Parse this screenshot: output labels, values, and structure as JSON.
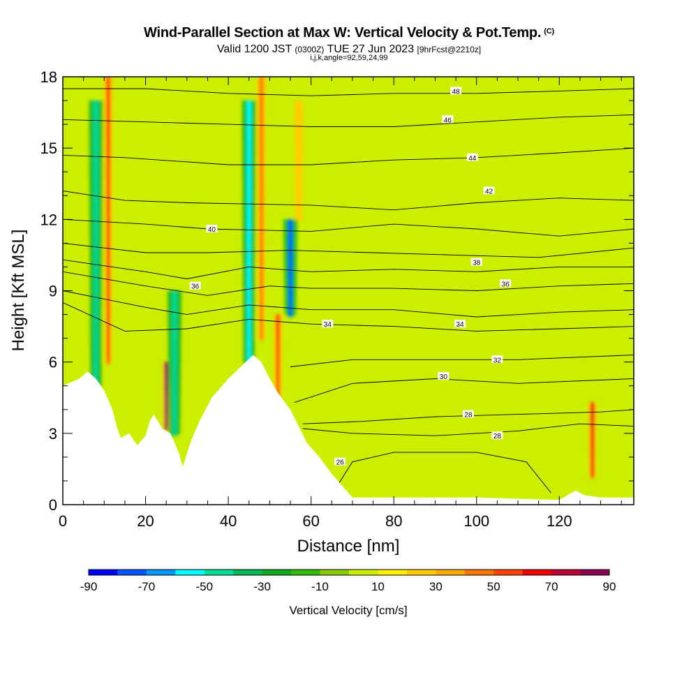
{
  "header": {
    "title": "Wind-Parallel Section at Max W: Vertical Velocity & Pot.Temp.",
    "title_mark": "(C)",
    "valid_main": "Valid 1200 JST",
    "valid_utc": "(0300Z)",
    "valid_date": "TUE 27 Jun 2023",
    "valid_fcst": "[9hrFcst@2210z]",
    "subtitle": "i,j,k,angle=92,59,24,99"
  },
  "chart_data": {
    "type": "heatmap",
    "xlabel": "Distance [nm]",
    "ylabel": "Height [Kft MSL]",
    "xlim": [
      0,
      138
    ],
    "ylim": [
      0,
      18
    ],
    "x_ticks": [
      0,
      20,
      40,
      60,
      80,
      100,
      120
    ],
    "y_ticks": [
      0,
      3,
      6,
      9,
      12,
      15,
      18
    ],
    "x_minor_step": 5,
    "y_minor_step": 1,
    "colorbar": {
      "label": "Vertical Velocity [cm/s]",
      "tick_labels": [
        -90,
        -70,
        -50,
        -30,
        -10,
        10,
        30,
        50,
        70,
        90
      ],
      "bounds": [
        -90,
        -80,
        -70,
        -60,
        -50,
        -40,
        -30,
        -20,
        -10,
        0,
        10,
        20,
        30,
        40,
        50,
        60,
        70,
        80,
        90
      ],
      "colors": [
        "#0000ff",
        "#0055ff",
        "#0099ff",
        "#00ffff",
        "#00dd99",
        "#00bb55",
        "#11aa22",
        "#33bb00",
        "#88cc00",
        "#ccee00",
        "#ffee00",
        "#ffcc00",
        "#ffaa00",
        "#ff7700",
        "#ff4400",
        "#ee0000",
        "#bb0033",
        "#880055"
      ]
    },
    "background_field": "#ccee00",
    "terrain_kft": [
      [
        0,
        5
      ],
      [
        4,
        5.3
      ],
      [
        6,
        5.6
      ],
      [
        8,
        5.3
      ],
      [
        10,
        4.8
      ],
      [
        12,
        4
      ],
      [
        13,
        3.3
      ],
      [
        14,
        2.8
      ],
      [
        16,
        3
      ],
      [
        18,
        2.5
      ],
      [
        20,
        2.9
      ],
      [
        21,
        3.5
      ],
      [
        22,
        3.8
      ],
      [
        24,
        3.2
      ],
      [
        26,
        3
      ],
      [
        28,
        2.2
      ],
      [
        29,
        1.6
      ],
      [
        31,
        2.7
      ],
      [
        33,
        3.5
      ],
      [
        36,
        4.5
      ],
      [
        40,
        5.3
      ],
      [
        43,
        5.8
      ],
      [
        46,
        6.3
      ],
      [
        48,
        6
      ],
      [
        50,
        5.3
      ],
      [
        52,
        4.7
      ],
      [
        55,
        4
      ],
      [
        57,
        3.3
      ],
      [
        59,
        2.6
      ],
      [
        62,
        2
      ],
      [
        65,
        1.3
      ],
      [
        68,
        0.7
      ],
      [
        70,
        0.3
      ],
      [
        90,
        0.3
      ],
      [
        100,
        0.3
      ],
      [
        120,
        0.2
      ],
      [
        122,
        0.4
      ],
      [
        124,
        0.6
      ],
      [
        126,
        0.4
      ],
      [
        130,
        0.3
      ],
      [
        138,
        0.3
      ]
    ],
    "updrafts": [
      {
        "x": 11,
        "ztop": 18,
        "zbot": 6,
        "w": 55
      },
      {
        "x": 25,
        "ztop": 6,
        "zbot": 3.2,
        "w": 90
      },
      {
        "x": 48,
        "ztop": 18,
        "zbot": 7,
        "w": 50
      },
      {
        "x": 52,
        "ztop": 8,
        "zbot": 4.2,
        "w": 60
      },
      {
        "x": 57,
        "ztop": 17,
        "zbot": 12,
        "w": 30
      },
      {
        "x": 128,
        "ztop": 4.3,
        "zbot": 1.2,
        "w": 65
      }
    ],
    "downdrafts": [
      {
        "x": 8,
        "ztop": 17,
        "zbot": 5,
        "w": -45
      },
      {
        "x": 27,
        "ztop": 9,
        "zbot": 3,
        "w": -40
      },
      {
        "x": 45,
        "ztop": 17,
        "zbot": 6,
        "w": -50
      },
      {
        "x": 55,
        "ztop": 12,
        "zbot": 8,
        "w": -70
      }
    ],
    "theta_contours": [
      {
        "label": "26",
        "pts": [
          [
            66,
            0.7
          ],
          [
            70,
            1.8
          ],
          [
            80,
            2.2
          ],
          [
            100,
            2.2
          ],
          [
            112,
            1.8
          ],
          [
            118,
            0.5
          ]
        ],
        "label_at": [
          67,
          1.8
        ]
      },
      {
        "label": "28",
        "pts": [
          [
            58,
            3.2
          ],
          [
            70,
            3
          ],
          [
            90,
            2.9
          ],
          [
            110,
            3.1
          ],
          [
            125,
            3.4
          ],
          [
            138,
            3.3
          ]
        ],
        "label_at": [
          105,
          2.9
        ]
      },
      {
        "label": "28",
        "pts": [
          [
            58,
            3.4
          ],
          [
            72,
            3.5
          ],
          [
            90,
            3.7
          ],
          [
            110,
            3.8
          ],
          [
            130,
            3.9
          ],
          [
            138,
            4
          ]
        ],
        "label_at": [
          98,
          3.8
        ]
      },
      {
        "label": "30",
        "pts": [
          [
            56,
            4.3
          ],
          [
            70,
            5.1
          ],
          [
            90,
            5.3
          ],
          [
            110,
            5.1
          ],
          [
            138,
            5.3
          ]
        ],
        "label_at": [
          92,
          5.4
        ]
      },
      {
        "label": "32",
        "pts": [
          [
            55,
            5.8
          ],
          [
            70,
            6.1
          ],
          [
            90,
            6.1
          ],
          [
            110,
            6.1
          ],
          [
            138,
            6.3
          ]
        ],
        "label_at": [
          105,
          6.1
        ]
      },
      {
        "label": "34",
        "pts": [
          [
            0,
            8.5
          ],
          [
            15,
            7.3
          ],
          [
            30,
            7.4
          ],
          [
            45,
            7.8
          ],
          [
            60,
            7.6
          ],
          [
            80,
            7.5
          ],
          [
            100,
            7.3
          ],
          [
            120,
            7.4
          ],
          [
            138,
            7.5
          ]
        ],
        "label_at": [
          64,
          7.6
        ]
      },
      {
        "label": "34",
        "pts": [
          [
            0,
            9
          ],
          [
            20,
            8.3
          ],
          [
            30,
            8
          ],
          [
            45,
            8.4
          ],
          [
            60,
            8.2
          ],
          [
            80,
            8.2
          ],
          [
            100,
            7.9
          ],
          [
            120,
            8.1
          ],
          [
            138,
            8.2
          ]
        ],
        "label_at": [
          96,
          7.6
        ]
      },
      {
        "label": "36",
        "pts": [
          [
            0,
            9.8
          ],
          [
            20,
            9.2
          ],
          [
            35,
            8.8
          ],
          [
            50,
            9.2
          ],
          [
            60,
            9.1
          ],
          [
            80,
            9.1
          ],
          [
            100,
            9
          ],
          [
            120,
            9.2
          ],
          [
            138,
            9.3
          ]
        ],
        "label_at": [
          107,
          9.3
        ]
      },
      {
        "label": "36",
        "pts": [
          [
            0,
            10.3
          ],
          [
            20,
            9.8
          ],
          [
            30,
            9.5
          ],
          [
            45,
            10
          ],
          [
            60,
            9.8
          ],
          [
            80,
            9.9
          ],
          [
            100,
            9.8
          ],
          [
            120,
            10
          ],
          [
            138,
            10
          ]
        ],
        "label_at": [
          32,
          9.2
        ]
      },
      {
        "label": "38",
        "pts": [
          [
            0,
            11
          ],
          [
            20,
            10.6
          ],
          [
            35,
            10.6
          ],
          [
            55,
            10.7
          ],
          [
            75,
            10.6
          ],
          [
            95,
            10.5
          ],
          [
            115,
            10.4
          ],
          [
            138,
            10.8
          ]
        ],
        "label_at": [
          100,
          10.2
        ]
      },
      {
        "label": "40",
        "pts": [
          [
            0,
            12
          ],
          [
            20,
            11.8
          ],
          [
            35,
            11.6
          ],
          [
            60,
            11.5
          ],
          [
            80,
            11.8
          ],
          [
            100,
            11.6
          ],
          [
            120,
            11.3
          ],
          [
            138,
            11.6
          ]
        ],
        "label_at": [
          36,
          11.6
        ]
      },
      {
        "label": "42",
        "pts": [
          [
            0,
            13.2
          ],
          [
            15,
            12.8
          ],
          [
            30,
            12.7
          ],
          [
            60,
            12.6
          ],
          [
            80,
            12.4
          ],
          [
            100,
            12.7
          ],
          [
            120,
            12.9
          ],
          [
            138,
            12.8
          ]
        ],
        "label_at": [
          103,
          13.2
        ]
      },
      {
        "label": "44",
        "pts": [
          [
            0,
            14.7
          ],
          [
            15,
            14.6
          ],
          [
            40,
            14.3
          ],
          [
            60,
            14.3
          ],
          [
            80,
            14.5
          ],
          [
            100,
            14.6
          ],
          [
            120,
            14.8
          ],
          [
            138,
            15
          ]
        ],
        "label_at": [
          99,
          14.6
        ]
      },
      {
        "label": "46",
        "pts": [
          [
            0,
            16.2
          ],
          [
            20,
            16.1
          ],
          [
            40,
            16
          ],
          [
            60,
            15.9
          ],
          [
            80,
            15.9
          ],
          [
            100,
            16.1
          ],
          [
            120,
            16.3
          ],
          [
            138,
            16.4
          ]
        ],
        "label_at": [
          93,
          16.2
        ]
      },
      {
        "label": "48",
        "pts": [
          [
            0,
            17.5
          ],
          [
            20,
            17.5
          ],
          [
            40,
            17.3
          ],
          [
            60,
            17.2
          ],
          [
            80,
            17.3
          ],
          [
            100,
            17.3
          ],
          [
            120,
            17.4
          ],
          [
            138,
            17.5
          ]
        ],
        "label_at": [
          95,
          17.4
        ]
      }
    ]
  }
}
